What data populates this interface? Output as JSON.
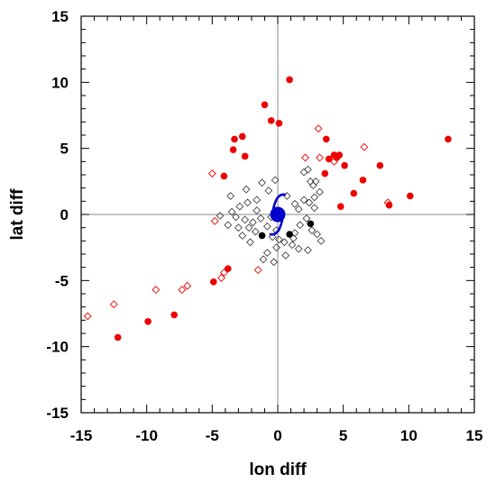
{
  "chart_data": {
    "type": "scatter",
    "title": "",
    "xlabel": "lon diff",
    "ylabel": "lat diff",
    "xlim": [
      -15,
      15
    ],
    "ylim": [
      -15,
      15
    ],
    "xticks": [
      -15,
      -10,
      -5,
      0,
      5,
      10,
      15
    ],
    "yticks": [
      -15,
      -10,
      -5,
      0,
      5,
      10,
      15
    ],
    "x_minor_step": 1,
    "y_minor_step": 1,
    "grid": false,
    "zero_lines": true,
    "legend": "none",
    "colors": {
      "red": "#ee0000",
      "black": "#000000",
      "gray_diamond": "#444444",
      "cyclone": "#0000cc"
    },
    "series": [
      {
        "marker": "filled-circle",
        "color": "#ee0000",
        "points": [
          [
            0.9,
            10.2
          ],
          [
            -1.0,
            8.3
          ],
          [
            -0.5,
            7.1
          ],
          [
            0.1,
            6.9
          ],
          [
            -2.7,
            5.9
          ],
          [
            -3.3,
            5.7
          ],
          [
            -3.4,
            4.9
          ],
          [
            -2.5,
            4.4
          ],
          [
            3.7,
            5.7
          ],
          [
            3.9,
            4.2
          ],
          [
            4.3,
            4.5
          ],
          [
            4.5,
            4.3
          ],
          [
            4.7,
            4.5
          ],
          [
            5.1,
            3.7
          ],
          [
            3.6,
            3.1
          ],
          [
            -4.1,
            2.9
          ],
          [
            6.5,
            2.6
          ],
          [
            7.8,
            3.7
          ],
          [
            5.8,
            1.6
          ],
          [
            4.8,
            0.6
          ],
          [
            8.5,
            0.7
          ],
          [
            10.1,
            1.4
          ],
          [
            13.0,
            5.7
          ],
          [
            -3.8,
            -4.1
          ],
          [
            -4.9,
            -5.1
          ],
          [
            -7.9,
            -7.6
          ],
          [
            -9.9,
            -8.1
          ],
          [
            -12.2,
            -9.3
          ]
        ]
      },
      {
        "marker": "filled-circle",
        "color": "#000000",
        "points": [
          [
            -1.2,
            -1.6
          ],
          [
            0.9,
            -1.5
          ],
          [
            2.5,
            -0.7
          ]
        ]
      },
      {
        "marker": "open-diamond",
        "color": "#ee0000",
        "points": [
          [
            3.1,
            6.5
          ],
          [
            6.6,
            5.1
          ],
          [
            2.1,
            4.3
          ],
          [
            3.2,
            4.3
          ],
          [
            -5.0,
            3.1
          ],
          [
            -4.8,
            -0.5
          ],
          [
            -4.1,
            -4.4
          ],
          [
            -4.3,
            -4.8
          ],
          [
            -6.9,
            -5.4
          ],
          [
            -7.3,
            -5.7
          ],
          [
            -9.3,
            -5.7
          ],
          [
            -12.5,
            -6.8
          ],
          [
            -14.5,
            -7.7
          ],
          [
            -1.5,
            -4.2
          ],
          [
            8.4,
            0.9
          ],
          [
            4.3,
            4.0
          ]
        ]
      },
      {
        "marker": "open-diamond",
        "color": "#444444",
        "points": [
          [
            -3.6,
            1.4
          ],
          [
            -2.4,
            1.9
          ],
          [
            -1.6,
            1.1
          ],
          [
            -2.3,
            0.9
          ],
          [
            -2.9,
            0.6
          ],
          [
            -3.5,
            0.2
          ],
          [
            -4.4,
            -0.1
          ],
          [
            -3.2,
            -0.2
          ],
          [
            -2.5,
            -0.4
          ],
          [
            -1.9,
            -0.6
          ],
          [
            -1.3,
            -0.3
          ],
          [
            -3.8,
            -0.8
          ],
          [
            -3.0,
            -1.0
          ],
          [
            -2.2,
            -1.0
          ],
          [
            -1.7,
            -1.3
          ],
          [
            -2.7,
            -1.6
          ],
          [
            -0.8,
            -0.9
          ],
          [
            -0.4,
            -1.7
          ],
          [
            0.1,
            -1.9
          ],
          [
            0.5,
            -2.1
          ],
          [
            -0.1,
            -2.5
          ],
          [
            -0.8,
            -2.9
          ],
          [
            -1.1,
            -3.4
          ],
          [
            -0.3,
            -3.6
          ],
          [
            0.6,
            -3.1
          ],
          [
            1.1,
            -2.3
          ],
          [
            1.6,
            -2.6
          ],
          [
            -0.7,
            1.8
          ],
          [
            -1.2,
            2.4
          ],
          [
            -0.2,
            2.6
          ],
          [
            0.7,
            1.4
          ],
          [
            1.3,
            0.8
          ],
          [
            1.6,
            0.4
          ],
          [
            2.0,
            1.1
          ],
          [
            2.4,
            0.9
          ],
          [
            2.8,
            1.3
          ],
          [
            2.2,
            -0.3
          ],
          [
            1.7,
            -0.8
          ],
          [
            2.6,
            -1.2
          ],
          [
            3.0,
            -1.5
          ],
          [
            3.3,
            -2.0
          ],
          [
            2.3,
            -2.7
          ],
          [
            1.2,
            -1.8
          ],
          [
            1.3,
            -1.4
          ],
          [
            2.7,
            2.2
          ],
          [
            2.5,
            2.5
          ],
          [
            2.9,
            2.5
          ],
          [
            2.0,
            3.2
          ],
          [
            2.3,
            3.4
          ],
          [
            -0.5,
            -0.2
          ],
          [
            -0.1,
            -1.2
          ],
          [
            -1.6,
            0.3
          ],
          [
            2.8,
            0.5
          ],
          [
            3.2,
            1.7
          ],
          [
            -2.1,
            -2.1
          ]
        ]
      }
    ],
    "annotations": [
      {
        "type": "tropical-cyclone-symbol",
        "x": 0,
        "y": 0,
        "color": "#0000cc"
      }
    ]
  }
}
